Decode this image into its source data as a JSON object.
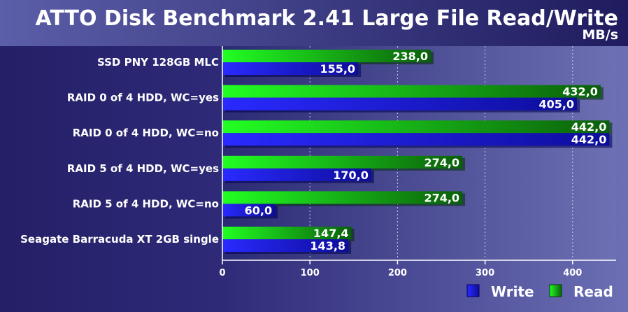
{
  "chart_data": {
    "type": "bar",
    "orientation": "horizontal",
    "title": "ATTO Disk Benchmark 2.41 Large File Read/Write",
    "unit": "MB/s",
    "categories": [
      "SSD PNY 128GB MLC",
      "RAID 0 of  4 HDD, WC=yes",
      "RAID 0 of  4 HDD, WC=no",
      "RAID 5 of  4 HDD, WC=yes",
      "RAID 5 of  4 HDD, WC=no",
      "Seagate Barracuda XT 2GB single"
    ],
    "series": [
      {
        "name": "Read",
        "color": "#19d619",
        "values": [
          238.0,
          432.0,
          442.0,
          274.0,
          274.0,
          147.4
        ],
        "labels": [
          "238,0",
          "432,0",
          "442,0",
          "274,0",
          "274,0",
          "147,4"
        ]
      },
      {
        "name": "Write",
        "color": "#1a1ae6",
        "values": [
          155.0,
          405.0,
          442.0,
          170.0,
          60.0,
          143.8
        ],
        "labels": [
          "155,0",
          "405,0",
          "442,0",
          "170,0",
          "60,0",
          "143,8"
        ]
      }
    ],
    "xlim": [
      0,
      450
    ],
    "xticks": [
      0,
      100,
      200,
      300,
      400
    ],
    "xtick_labels": [
      "0",
      "100",
      "200",
      "300",
      "400"
    ],
    "grid": true,
    "legend": {
      "position": "bottom-right",
      "entries": [
        "Write",
        "Read"
      ]
    }
  }
}
